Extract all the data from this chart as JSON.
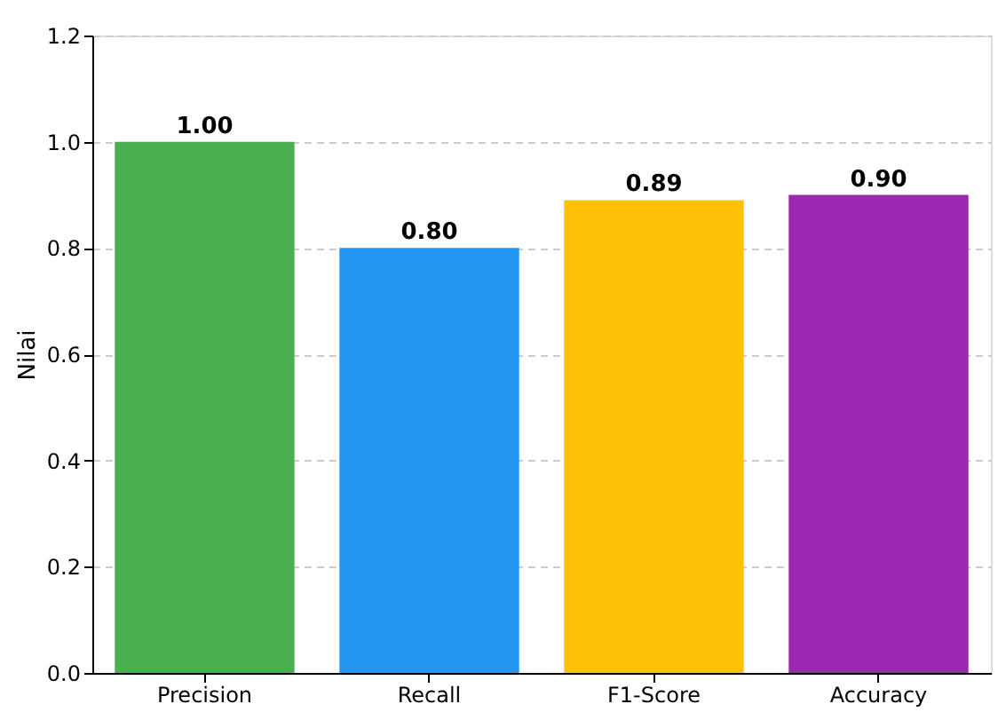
{
  "chart_data": {
    "type": "bar",
    "ylabel": "Nilai",
    "categories": [
      "Precision",
      "Recall",
      "F1-Score",
      "Accuracy"
    ],
    "values": [
      1.0,
      0.8,
      0.89,
      0.9
    ],
    "colors": [
      "#4caf50",
      "#2196f3",
      "#ffc107",
      "#9c27b0"
    ],
    "value_labels": [
      "1.00",
      "0.80",
      "0.89",
      "0.90"
    ],
    "ylim": [
      0,
      1.2
    ],
    "yticks": [
      {
        "value": 0,
        "label": "0.0"
      },
      {
        "value": 0.2,
        "label": "0.2"
      },
      {
        "value": 0.4,
        "label": "0.4"
      },
      {
        "value": 0.6,
        "label": "0.6"
      },
      {
        "value": 0.8,
        "label": "0.8"
      },
      {
        "value": 1.0,
        "label": "1.0"
      },
      {
        "value": 1.2,
        "label": "1.2"
      }
    ],
    "grid": "y"
  }
}
